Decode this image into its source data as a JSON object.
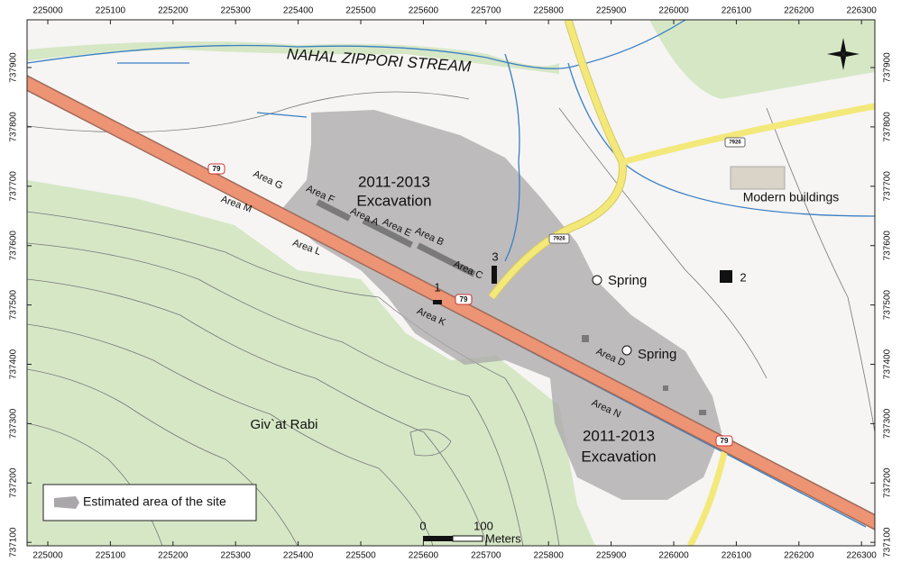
{
  "map": {
    "stream": "NAHAL ZIPPORI STREAM",
    "easting": [
      225000,
      225100,
      225200,
      225300,
      225400,
      225500,
      225600,
      225700,
      225800,
      225900,
      226000,
      226100,
      226200,
      226300
    ],
    "northing": [
      737900,
      737800,
      737700,
      737600,
      737500,
      737400,
      737300,
      737200,
      737100
    ],
    "excavations": [
      [
        "2011-2013",
        "Excavation"
      ],
      [
        "2011-2013",
        "Excavation"
      ]
    ],
    "modern": "Modern buildings",
    "springs": [
      "Spring",
      "Spring"
    ],
    "hill": "Giv`at Rabi",
    "areas": [
      "Area G",
      "Area F",
      "Area M",
      "Area A",
      "Area E",
      "Area B",
      "Area L",
      "Area C",
      "Area K",
      "Area D",
      "Area N"
    ],
    "points": [
      "1",
      "2",
      "3"
    ],
    "roads": [
      "79",
      "79",
      "79",
      "7926",
      "7926"
    ],
    "legend": "Estimated area of the site",
    "scale": [
      "0",
      "100",
      "Meters"
    ]
  }
}
